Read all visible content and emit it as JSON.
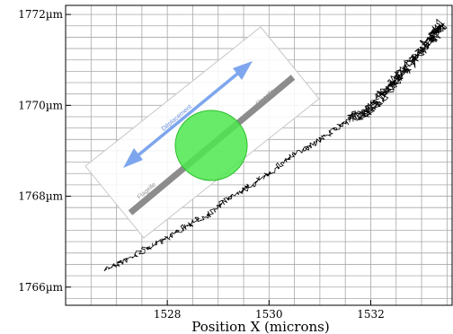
{
  "chart_data": {
    "type": "line",
    "title": "",
    "xlabel": "Position X (microns)",
    "ylabel": "",
    "xlim": [
      1526.0,
      1533.6
    ],
    "ylim": [
      1765.6,
      1772.2
    ],
    "x_ticks": [
      {
        "value": 1528,
        "label": "1528"
      },
      {
        "value": 1530,
        "label": "1530"
      },
      {
        "value": 1532,
        "label": "1532"
      }
    ],
    "y_ticks": [
      {
        "value": 1766,
        "label": "1766µm"
      },
      {
        "value": 1768,
        "label": "1768µm"
      },
      {
        "value": 1770,
        "label": "1770µm"
      },
      {
        "value": 1772,
        "label": "1772µm"
      }
    ],
    "grid": true,
    "series": [
      {
        "color": "#000000",
        "x": [
          1526.8,
          1527.2,
          1527.6,
          1528.0,
          1528.4,
          1528.8,
          1529.2,
          1529.6,
          1530.0,
          1530.4,
          1530.8,
          1531.2,
          1531.6,
          1532.0,
          1532.3,
          1532.6,
          1532.9,
          1533.2,
          1533.4
        ],
        "y": [
          1766.4,
          1766.6,
          1766.85,
          1767.1,
          1767.35,
          1767.6,
          1767.95,
          1768.2,
          1768.5,
          1768.85,
          1769.1,
          1769.4,
          1769.7,
          1769.9,
          1770.3,
          1770.7,
          1771.1,
          1771.5,
          1771.8
        ]
      }
    ],
    "inset": {
      "displacement_label": "Déplacement",
      "flagelle_label_left": "Flagelle",
      "flagelle_label_right": "Flagelle",
      "arrow_color": "#7ea6ee",
      "flagellum_color": "#8c8c8c",
      "body_color": "#4ee84e"
    }
  }
}
